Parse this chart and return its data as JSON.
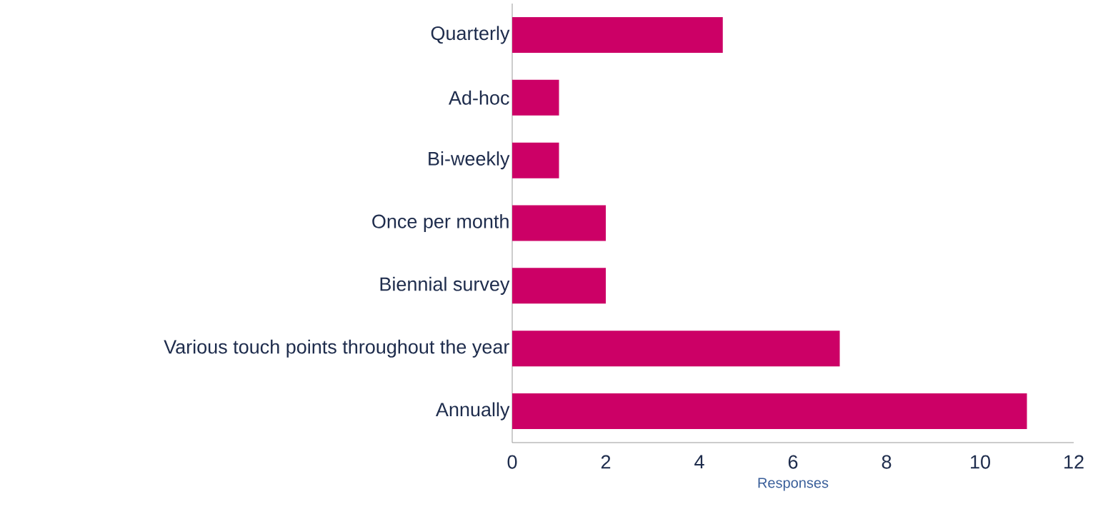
{
  "chart_data": {
    "type": "bar",
    "orientation": "horizontal",
    "xlabel": "Responses",
    "categories": [
      "Quarterly",
      "Ad-hoc",
      "Bi-weekly",
      "Once per month",
      "Biennial survey",
      "Various touch points throughout the year",
      "Annually"
    ],
    "values": [
      4.5,
      1,
      1,
      2,
      2,
      7,
      11
    ],
    "color": "#cc0066",
    "xlim": [
      0,
      12
    ],
    "xticks": [
      0,
      2,
      4,
      6,
      8,
      10,
      12
    ]
  }
}
